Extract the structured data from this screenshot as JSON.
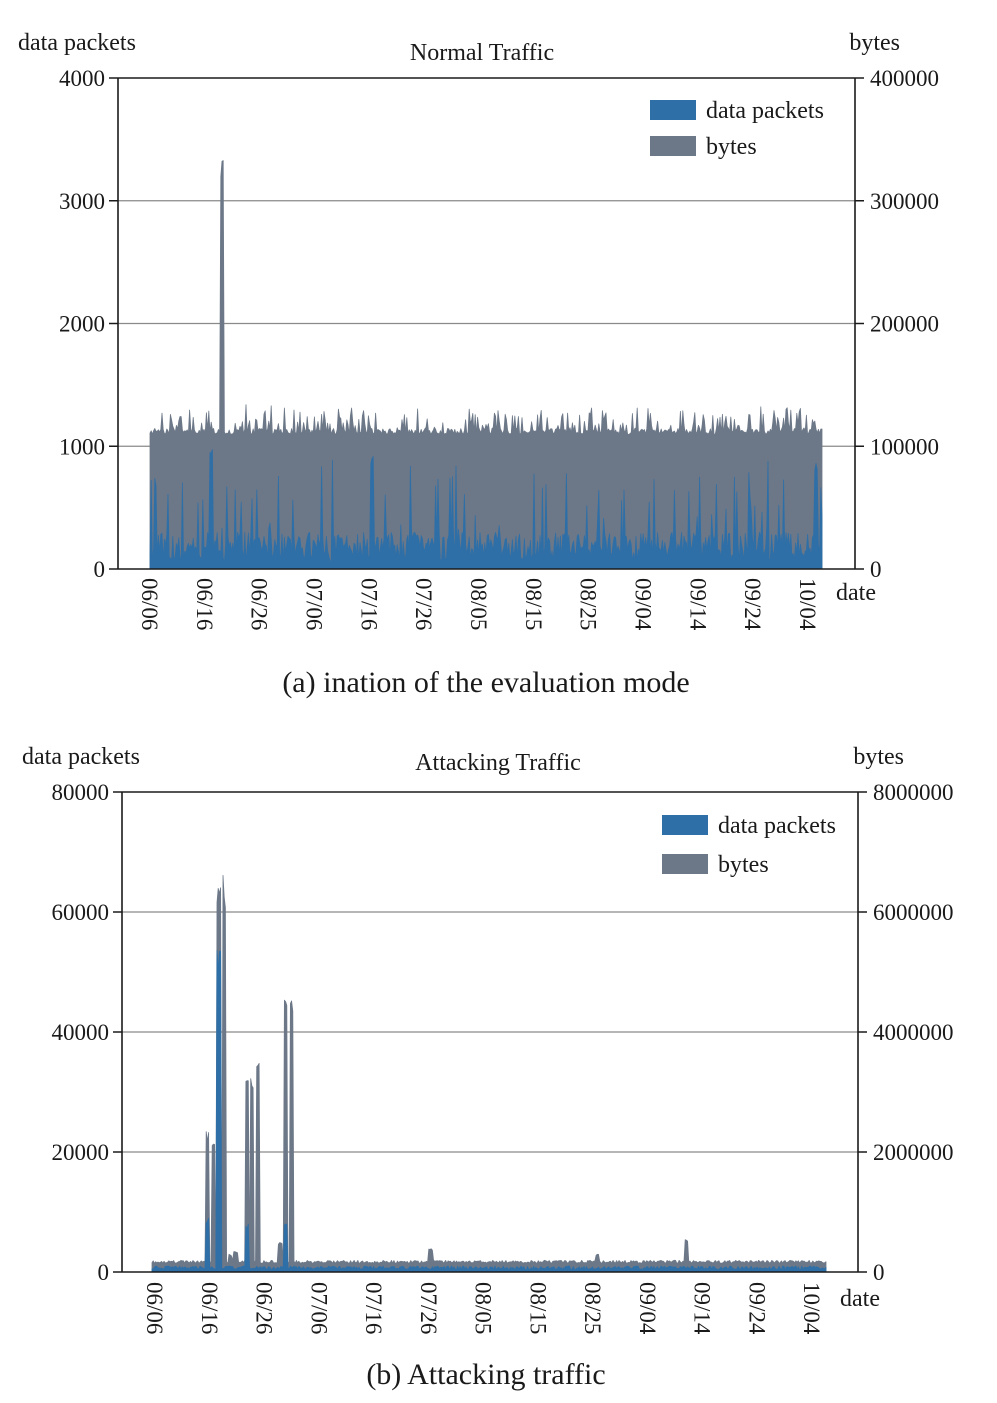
{
  "colors": {
    "packets": "#2f6fa7",
    "bytes": "#6c7888",
    "axis": "#1a1a1a",
    "grid": "#8a8a8a"
  },
  "charts": [
    {
      "caption": "(a) ination of the evaluation mode",
      "chart_data": {
        "type": "area",
        "title": "Normal Traffic",
        "ylabel_left": "data packets",
        "ylabel_right": "bytes",
        "xlabel": "date",
        "ylim_left": [
          0,
          4000
        ],
        "ylim_right": [
          0,
          400000
        ],
        "yticks_left": [
          "0",
          "1000",
          "2000",
          "3000",
          "4000"
        ],
        "yticks_right": [
          "0",
          "100000",
          "200000",
          "300000",
          "400000"
        ],
        "xticks": [
          "06/06",
          "06/16",
          "06/26",
          "07/06",
          "07/16",
          "07/26",
          "08/05",
          "08/15",
          "08/25",
          "09/04",
          "09/14",
          "09/24",
          "10/04"
        ],
        "x_start": "06/06",
        "x_end": "10/05",
        "grid": true,
        "legend_position": "top-right",
        "series": [
          {
            "name": "data packets",
            "axis": "left",
            "baseline": 180,
            "noise": 120,
            "spike_prob": 0.12,
            "spike_max": 650,
            "peaks": [
              {
                "day": "06/17",
                "value": 1000
              },
              {
                "day": "07/16",
                "value": 950
              },
              {
                "day": "10/04",
                "value": 880
              }
            ]
          },
          {
            "name": "bytes",
            "axis": "right",
            "baseline": 112000,
            "noise": 2500,
            "spike_prob": 0.35,
            "spike_max": 20000,
            "peaks": [
              {
                "day": "06/19",
                "value": 350000
              }
            ]
          }
        ]
      }
    },
    {
      "caption": "(b) Attacking traffic",
      "chart_data": {
        "type": "area",
        "title": "Attacking Traffic",
        "ylabel_left": "data packets",
        "ylabel_right": "bytes",
        "xlabel": "date",
        "ylim_left": [
          0,
          80000
        ],
        "ylim_right": [
          0,
          8000000
        ],
        "yticks_left": [
          "0",
          "20000",
          "40000",
          "60000",
          "80000"
        ],
        "yticks_right": [
          "0",
          "2000000",
          "4000000",
          "6000000",
          "8000000"
        ],
        "xticks": [
          "06/06",
          "06/16",
          "06/26",
          "07/06",
          "07/16",
          "07/26",
          "08/05",
          "08/15",
          "08/25",
          "09/04",
          "09/14",
          "09/24",
          "10/04"
        ],
        "x_start": "06/06",
        "x_end": "10/05",
        "grid": true,
        "legend_position": "top-right",
        "series": [
          {
            "name": "data packets",
            "axis": "left",
            "baseline": 700,
            "noise": 300,
            "spike_prob": 0.0,
            "spike_max": 0,
            "peaks": [
              {
                "day": "06/16",
                "value": 9000
              },
              {
                "day": "06/18",
                "value": 55000
              },
              {
                "day": "06/23",
                "value": 8000
              },
              {
                "day": "06/30",
                "value": 8000
              }
            ]
          },
          {
            "name": "bytes",
            "axis": "right",
            "baseline": 170000,
            "noise": 25000,
            "spike_prob": 0.0,
            "spike_max": 0,
            "peaks": [
              {
                "day": "06/16",
                "value": 2400000
              },
              {
                "day": "06/17",
                "value": 2300000
              },
              {
                "day": "06/18",
                "value": 6600000
              },
              {
                "day": "06/19",
                "value": 6700000
              },
              {
                "day": "06/20",
                "value": 300000
              },
              {
                "day": "06/21",
                "value": 350000
              },
              {
                "day": "06/23",
                "value": 3400000
              },
              {
                "day": "06/24",
                "value": 3400000
              },
              {
                "day": "06/25",
                "value": 3500000
              },
              {
                "day": "06/29",
                "value": 500000
              },
              {
                "day": "06/30",
                "value": 4700000
              },
              {
                "day": "07/01",
                "value": 4600000
              },
              {
                "day": "07/26",
                "value": 400000
              },
              {
                "day": "08/25",
                "value": 300000
              },
              {
                "day": "09/10",
                "value": 550000
              }
            ]
          }
        ]
      }
    }
  ]
}
